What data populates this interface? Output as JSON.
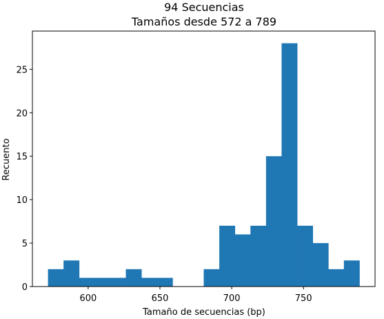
{
  "chart_data": {
    "type": "bar",
    "title": "94 Secuencias",
    "subtitle": "Tamaños desde 572 a 789",
    "xlabel": "Tamaño de secuencias (bp)",
    "ylabel": "Recuento",
    "bin_edges": [
      572,
      582.85,
      593.7,
      604.55,
      615.4,
      626.25,
      637.1,
      647.95,
      658.8,
      669.65,
      680.5,
      691.35,
      702.2,
      713.05,
      723.9,
      734.75,
      745.6,
      756.45,
      767.3,
      778.15,
      789
    ],
    "values": [
      2,
      3,
      1,
      1,
      1,
      2,
      1,
      1,
      0,
      0,
      2,
      7,
      6,
      7,
      15,
      28,
      7,
      5,
      2,
      3
    ],
    "xlim": [
      561.15,
      799.85
    ],
    "ylim": [
      0,
      29.4
    ],
    "xticks": [
      600,
      650,
      700,
      750
    ],
    "yticks": [
      0,
      5,
      10,
      15,
      20,
      25
    ],
    "bar_color": "#1f77b4",
    "grid": false,
    "legend": "none"
  }
}
